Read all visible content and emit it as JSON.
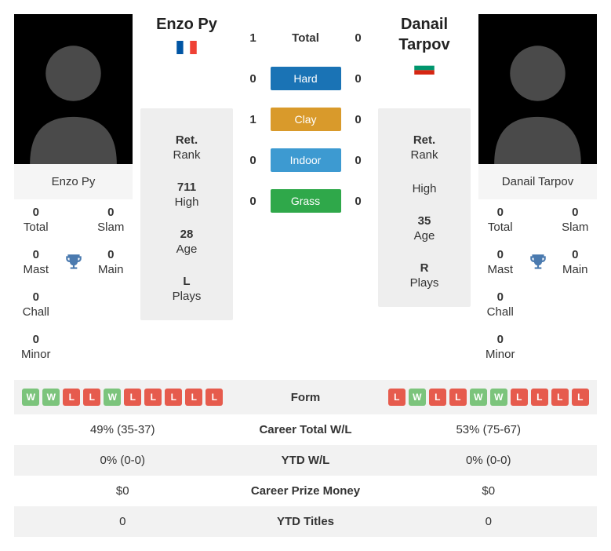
{
  "colors": {
    "win": "#7cc47c",
    "loss": "#e65b4d",
    "hard": "#1a73b5",
    "clay": "#d99a2b",
    "indoor": "#3d9ad1",
    "grass": "#2fa84a",
    "trophy": "#4a7aaf",
    "card_bg": "#eeeeee",
    "row_grey": "#f2f2f2"
  },
  "p1": {
    "name": "Enzo Py",
    "name_display": "Enzo Py",
    "flag": "france",
    "titles": {
      "total": {
        "v": "0",
        "l": "Total"
      },
      "slam": {
        "v": "0",
        "l": "Slam"
      },
      "mast": {
        "v": "0",
        "l": "Mast"
      },
      "main": {
        "v": "0",
        "l": "Main"
      },
      "chall": {
        "v": "0",
        "l": "Chall"
      },
      "minor": {
        "v": "0",
        "l": "Minor"
      }
    },
    "stats": {
      "ret": {
        "v": "Ret.",
        "l": "Rank"
      },
      "high": {
        "v": "711",
        "l": "High"
      },
      "age": {
        "v": "28",
        "l": "Age"
      },
      "plays": {
        "v": "L",
        "l": "Plays"
      }
    },
    "h2h": {
      "total": "1",
      "hard": "0",
      "clay": "1",
      "indoor": "0",
      "grass": "0"
    },
    "form": [
      "W",
      "W",
      "L",
      "L",
      "W",
      "L",
      "L",
      "L",
      "L",
      "L"
    ],
    "career_wl": "49% (35-37)",
    "ytd_wl": "0% (0-0)",
    "prize": "$0",
    "ytd_titles": "0"
  },
  "p2": {
    "name": "Danail Tarpov",
    "name_line1": "Danail",
    "name_line2": "Tarpov",
    "flag": "bulgaria",
    "titles": {
      "total": {
        "v": "0",
        "l": "Total"
      },
      "slam": {
        "v": "0",
        "l": "Slam"
      },
      "mast": {
        "v": "0",
        "l": "Mast"
      },
      "main": {
        "v": "0",
        "l": "Main"
      },
      "chall": {
        "v": "0",
        "l": "Chall"
      },
      "minor": {
        "v": "0",
        "l": "Minor"
      }
    },
    "stats": {
      "ret": {
        "v": "Ret.",
        "l": "Rank"
      },
      "high": {
        "v": "",
        "l": "High"
      },
      "age": {
        "v": "35",
        "l": "Age"
      },
      "plays": {
        "v": "R",
        "l": "Plays"
      }
    },
    "h2h": {
      "total": "0",
      "hard": "0",
      "clay": "0",
      "indoor": "0",
      "grass": "0"
    },
    "form": [
      "L",
      "W",
      "L",
      "L",
      "W",
      "W",
      "L",
      "L",
      "L",
      "L"
    ],
    "career_wl": "53% (75-67)",
    "ytd_wl": "0% (0-0)",
    "prize": "$0",
    "ytd_titles": "0"
  },
  "h2h_labels": {
    "total": "Total",
    "hard": "Hard",
    "clay": "Clay",
    "indoor": "Indoor",
    "grass": "Grass"
  },
  "table_labels": {
    "form": "Form",
    "career_wl": "Career Total W/L",
    "ytd_wl": "YTD W/L",
    "prize": "Career Prize Money",
    "ytd_titles": "YTD Titles"
  }
}
